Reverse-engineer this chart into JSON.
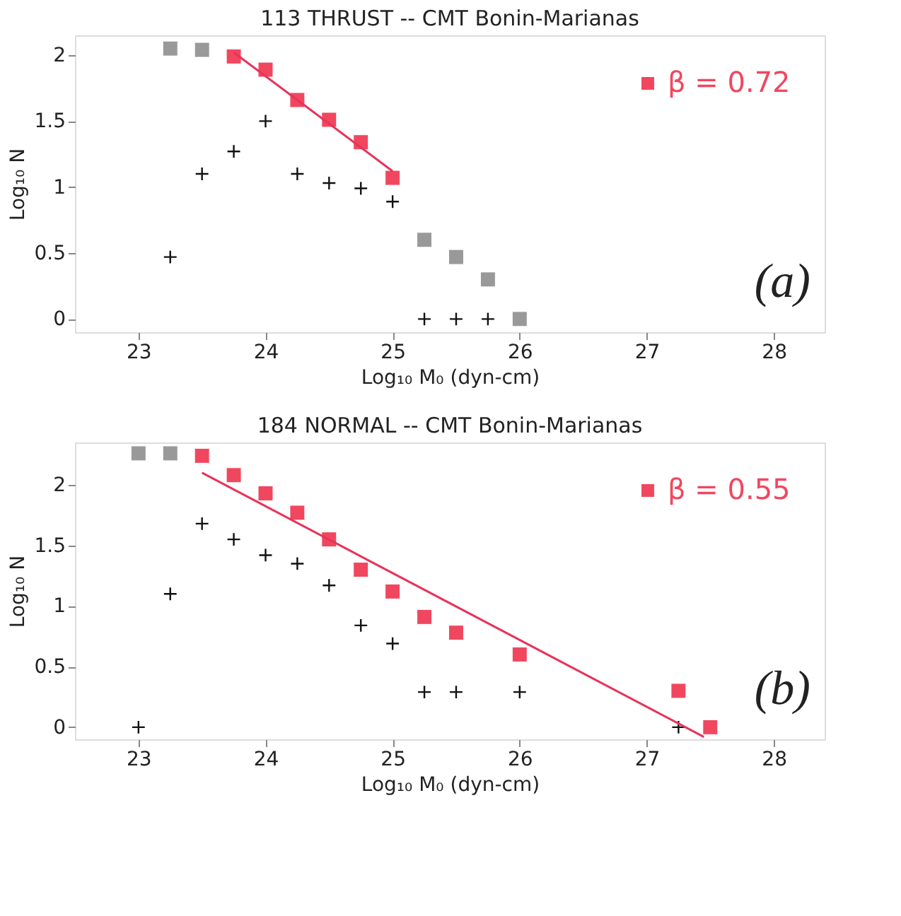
{
  "chart_data": [
    {
      "type": "scatter",
      "title": "113    THRUST -- CMT   Bonin-Marianas",
      "xlabel": "Log₁₀ M₀ (dyn-cm)",
      "ylabel": "Log₁₀ N",
      "xlim": [
        22.5,
        28.4
      ],
      "ylim": [
        -0.1,
        2.15
      ],
      "xticks": [
        23,
        24,
        25,
        26,
        27,
        28
      ],
      "yticks": [
        0,
        0.5,
        1,
        1.5,
        2
      ],
      "grid": false,
      "legend": "top right",
      "annotations": [
        "(a)"
      ],
      "series": [
        {
          "color": "#999999",
          "marker": "square",
          "x": [
            23.25,
            23.5,
            25.25,
            25.5,
            25.75,
            26
          ],
          "values": [
            2.05,
            2.04,
            0.6,
            0.47,
            0.3,
            0
          ]
        },
        {
          "name": "β = 0.72",
          "color": "#f0475f",
          "marker": "square",
          "x": [
            23.75,
            24,
            24.25,
            24.5,
            24.75,
            25
          ],
          "values": [
            1.99,
            1.89,
            1.66,
            1.51,
            1.34,
            1.07
          ]
        },
        {
          "color": "#111111",
          "marker": "cross",
          "x": [
            23.25,
            23.5,
            23.75,
            24,
            24.25,
            24.5,
            24.75,
            25,
            25.25,
            25.5,
            25.75
          ],
          "values": [
            0.47,
            1.1,
            1.27,
            1.5,
            1.1,
            1.03,
            0.99,
            0.89,
            0,
            0,
            0
          ]
        },
        {
          "type": "line",
          "color": "#e8335a",
          "x": [
            23.75,
            25
          ],
          "values": [
            2.02,
            1.12
          ]
        }
      ]
    },
    {
      "type": "scatter",
      "title": "184    NORMAL -- CMT   Bonin-Marianas",
      "xlabel": "Log₁₀ M₀ (dyn-cm)",
      "ylabel": "Log₁₀ N",
      "xlim": [
        22.5,
        28.4
      ],
      "ylim": [
        -0.1,
        2.35
      ],
      "xticks": [
        23,
        24,
        25,
        26,
        27,
        28
      ],
      "yticks": [
        0,
        0.5,
        1,
        1.5,
        2
      ],
      "grid": false,
      "legend": "top right",
      "annotations": [
        "(b)"
      ],
      "series": [
        {
          "color": "#999999",
          "marker": "square",
          "x": [
            23,
            23.25
          ],
          "values": [
            2.26,
            2.26
          ]
        },
        {
          "name": "β = 0.55",
          "color": "#f0475f",
          "marker": "square",
          "x": [
            23.5,
            23.75,
            24,
            24.25,
            24.5,
            24.75,
            25,
            25.25,
            25.5,
            26,
            27.25,
            27.5
          ],
          "values": [
            2.24,
            2.08,
            1.93,
            1.77,
            1.55,
            1.3,
            1.12,
            0.91,
            0.78,
            0.6,
            0.3,
            0
          ]
        },
        {
          "color": "#111111",
          "marker": "cross",
          "x": [
            23,
            23.25,
            23.5,
            23.75,
            24,
            24.25,
            24.5,
            24.75,
            25,
            25.25,
            25.5,
            26,
            27.25
          ],
          "values": [
            0,
            1.1,
            1.68,
            1.55,
            1.42,
            1.35,
            1.17,
            0.84,
            0.69,
            0.29,
            0.29,
            0.29,
            0
          ]
        },
        {
          "type": "line",
          "color": "#e8335a",
          "x": [
            23.5,
            27.45
          ],
          "values": [
            2.1,
            -0.08
          ]
        }
      ]
    }
  ]
}
